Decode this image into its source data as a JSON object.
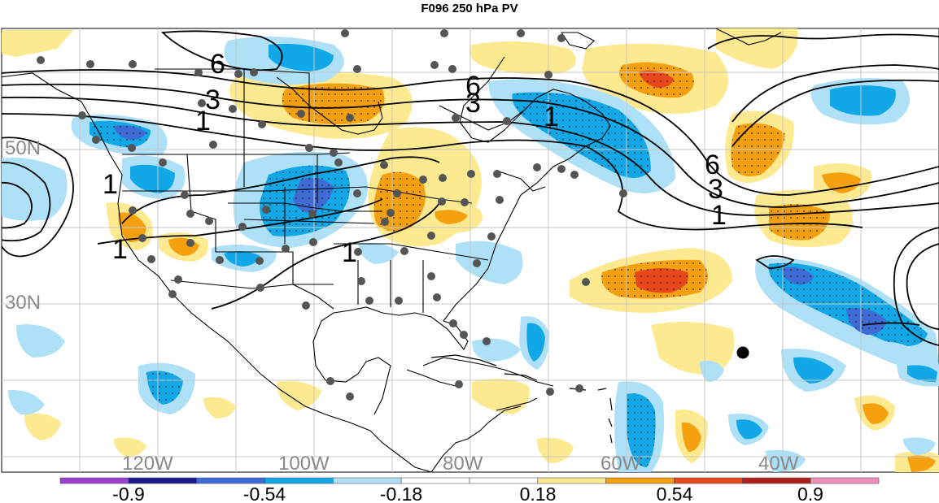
{
  "title": "F096 250 hPa PV",
  "lon_labels": [
    "120W",
    "100W",
    "80W",
    "60W",
    "40W"
  ],
  "lat_labels": [
    "50N",
    "30N"
  ],
  "colorbar": {
    "colors": [
      "#9b3fd1",
      "#1a1a8c",
      "#3e6bd6",
      "#12a8e8",
      "#aee0f7",
      "#ffffff",
      "#ffffff",
      "#fde98f",
      "#f5a00f",
      "#e8481c",
      "#b01d1d",
      "#f28fba"
    ],
    "tick_labels": [
      "-0.9",
      "-0.54",
      "-0.18",
      "0.18",
      "0.54",
      "0.9"
    ]
  },
  "contour_labels": [
    "6",
    "3",
    "1",
    "6",
    "3",
    "1",
    "1",
    "6",
    "3",
    "1",
    "1",
    "1"
  ],
  "map_data": {
    "projection": "cylindrical equidistant",
    "field": "250 hPa PV anomaly (shaded) and PV (contours)",
    "contour_values": [
      1,
      3,
      6
    ]
  }
}
